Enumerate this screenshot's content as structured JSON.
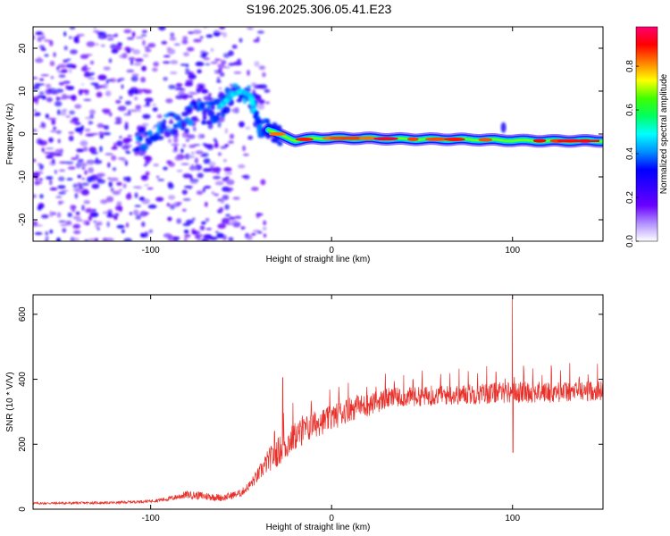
{
  "title": "S196.2025.306.05.41.E23",
  "chart_data": [
    {
      "type": "heatmap",
      "name": "spectrogram",
      "xlabel": "Height of straight line (km)",
      "ylabel": "Frequency (Hz)",
      "xlim": [
        -165,
        150
      ],
      "ylim": [
        -25,
        25
      ],
      "xticks": [
        -100,
        0,
        100
      ],
      "yticks": [
        -20,
        -10,
        0,
        10,
        20
      ],
      "colorbar": {
        "label": "Normalized spectral amplitude",
        "range": [
          0,
          0.98
        ],
        "ticks": [
          0,
          0.2,
          0.4,
          0.6,
          0.8
        ],
        "tick_labels": [
          "0.0",
          "0.2",
          "0.4",
          "0.6",
          "0.8"
        ],
        "colors": [
          "#ffffff",
          "#b090ff",
          "#6a00ff",
          "#3300ff",
          "#0000ff",
          "#0090ff",
          "#00ffff",
          "#00ff60",
          "#40ff00",
          "#ffff00",
          "#ff8000",
          "#ff0000",
          "#ff0070"
        ]
      },
      "features": {
        "ridge_points": [
          [
            -105,
            -1.5
          ],
          [
            -95,
            1
          ],
          [
            -85,
            3
          ],
          [
            -75,
            5
          ],
          [
            -65,
            5
          ],
          [
            -60,
            7
          ],
          [
            -55,
            9
          ],
          [
            -50,
            10
          ],
          [
            -45,
            9
          ],
          [
            -40,
            2
          ],
          [
            -35,
            1
          ],
          [
            -30,
            0
          ],
          [
            -20,
            -1.5
          ],
          [
            -10,
            -1
          ],
          [
            0,
            -1
          ],
          [
            20,
            -1
          ],
          [
            40,
            -1.2
          ],
          [
            60,
            -1.2
          ],
          [
            80,
            -1.3
          ],
          [
            100,
            -1.5
          ],
          [
            120,
            -1.6
          ],
          [
            148,
            -1.6
          ]
        ],
        "carrier_amplitude": 0.95,
        "noise_region": [
          -165,
          -45
        ]
      }
    },
    {
      "type": "line",
      "name": "snr",
      "xlabel": "Height of straight line (km)",
      "ylabel": "SNR (10 * V/V)",
      "xlim": [
        -165,
        150
      ],
      "ylim": [
        0,
        660
      ],
      "xticks": [
        -100,
        0,
        100
      ],
      "yticks": [
        0,
        200,
        400,
        600
      ],
      "color": "#e8302a",
      "envelope": {
        "x": [
          -165,
          -120,
          -100,
          -90,
          -80,
          -70,
          -60,
          -50,
          -45,
          -40,
          -35,
          -30,
          -25,
          -20,
          -10,
          0,
          10,
          20,
          30,
          40,
          60,
          80,
          100,
          120,
          150
        ],
        "mean": [
          18,
          20,
          25,
          32,
          45,
          40,
          35,
          50,
          75,
          110,
          150,
          175,
          200,
          225,
          260,
          280,
          310,
          320,
          340,
          345,
          350,
          355,
          360,
          360,
          365
        ],
        "spread": [
          6,
          7,
          8,
          12,
          20,
          22,
          18,
          20,
          25,
          40,
          60,
          75,
          80,
          75,
          70,
          65,
          65,
          60,
          55,
          50,
          50,
          55,
          55,
          55,
          50
        ]
      },
      "peaks": [
        {
          "x": -27,
          "y": 405
        },
        {
          "x": 100,
          "y": 650
        },
        {
          "x": 100,
          "y": 175
        }
      ]
    }
  ]
}
